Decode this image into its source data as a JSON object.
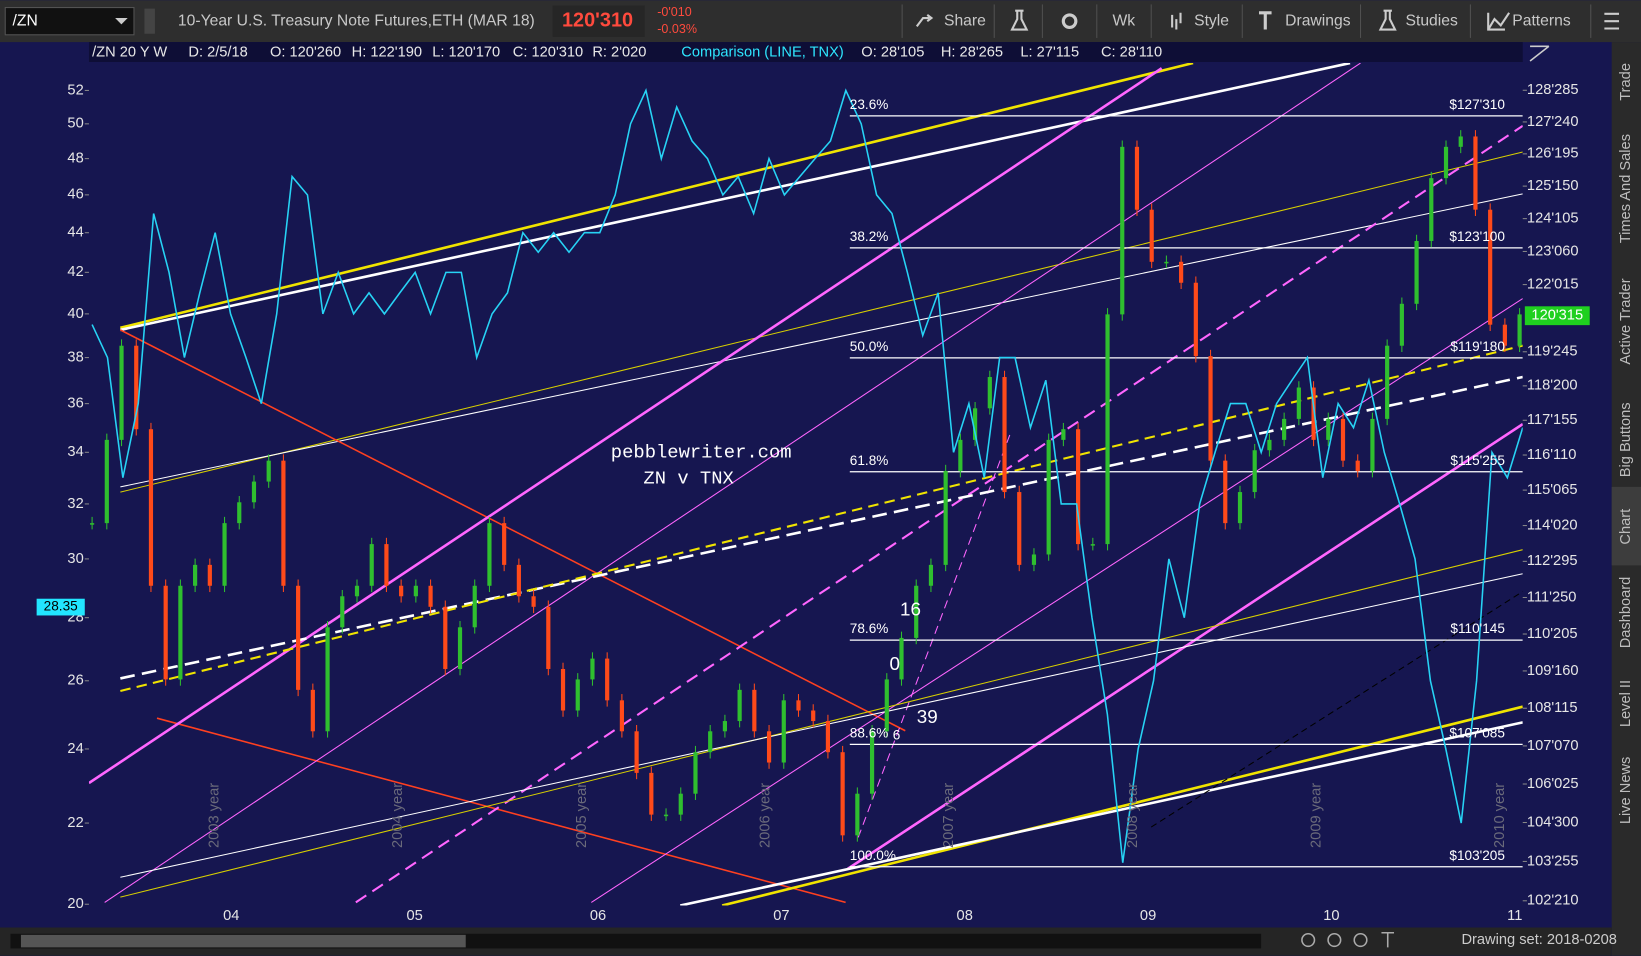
{
  "toolbar": {
    "symbol": "/ZN",
    "description": "10-Year U.S. Treasury Note Futures,ETH (MAR 18)",
    "last": "120'310",
    "change": "-0'010",
    "change_pct": "-0.03%",
    "buttons": [
      "Share",
      "Wk",
      "Style",
      "Drawings",
      "Studies",
      "Patterns"
    ]
  },
  "info_bar": {
    "symbol": "/ZN 20 Y W",
    "date": "D: 2/5/18",
    "open": "O: 120'260",
    "high": "H: 122'190",
    "low": "L: 120'170",
    "close": "C: 120'310",
    "range": "R: 2'020",
    "comparison": "Comparison (LINE, TNX)",
    "cmp_open": "O: 28'105",
    "cmp_high": "H: 28'265",
    "cmp_low": "L: 27'115",
    "cmp_close": "C: 28'110"
  },
  "chart": {
    "log_scale": true,
    "left_lim": [
      19.97,
      53.7
    ],
    "left_ticks": [
      52,
      50,
      48,
      46,
      44,
      42,
      40,
      38,
      36,
      34,
      32,
      30,
      28,
      26,
      24,
      22,
      20
    ],
    "current_tnx": 28.35,
    "right_lim": [
      102.52,
      129.88
    ],
    "right_ticks": [
      {
        "value": 128.890625,
        "label": "128'285"
      },
      {
        "value": 127.75,
        "label": "127'240"
      },
      {
        "value": 126.609375,
        "label": "126'195"
      },
      {
        "value": 125.46875,
        "label": "125'150"
      },
      {
        "value": 124.328125,
        "label": "124'105"
      },
      {
        "value": 123.1875,
        "label": "123'060"
      },
      {
        "value": 122.046875,
        "label": "122'015"
      },
      {
        "value": 119.765625,
        "label": "119'245"
      },
      {
        "value": 118.625,
        "label": "118'200"
      },
      {
        "value": 117.484375,
        "label": "117'155"
      },
      {
        "value": 116.34375,
        "label": "116'110"
      },
      {
        "value": 115.203125,
        "label": "115'065"
      },
      {
        "value": 114.0625,
        "label": "114'020"
      },
      {
        "value": 112.921875,
        "label": "112'295"
      },
      {
        "value": 111.78125,
        "label": "111'250"
      },
      {
        "value": 110.640625,
        "label": "110'205"
      },
      {
        "value": 109.5,
        "label": "109'160"
      },
      {
        "value": 108.359375,
        "label": "108'115"
      },
      {
        "value": 107.21875,
        "label": "107'070"
      },
      {
        "value": 106.078125,
        "label": "106'025"
      },
      {
        "value": 104.9375,
        "label": "104'300"
      },
      {
        "value": 103.796875,
        "label": "103'255"
      },
      {
        "value": 102.65625,
        "label": "102'210"
      }
    ],
    "current_price": {
      "value": 120.984375,
      "label": "120'315"
    },
    "x_labels": [
      "04",
      "05",
      "06",
      "07",
      "08",
      "09",
      "10",
      "11"
    ],
    "year_markers": [
      "2003 year",
      "2004 year",
      "2005 year",
      "2006 year",
      "2007 year",
      "2008 year",
      "2009 year",
      "2010 year"
    ],
    "fib_levels": [
      {
        "pct": "23.6%",
        "price": {
          "value": 127.96875,
          "label": "$127'310"
        }
      },
      {
        "pct": "38.2%",
        "price": {
          "value": 123.3125,
          "label": "$123'100"
        }
      },
      {
        "pct": "50.0%",
        "price": {
          "value": 119.5625,
          "label": "$119'180"
        }
      },
      {
        "pct": "61.8%",
        "price": {
          "value": 115.796875,
          "label": "$115'255"
        }
      },
      {
        "pct": "78.6%",
        "price": {
          "value": 110.453125,
          "label": "$110'145"
        }
      },
      {
        "pct": "88.6%",
        "price": {
          "value": 107.265625,
          "label": "$107'085"
        }
      },
      {
        "pct": "100.0%",
        "price": {
          "value": 103.640625,
          "label": "$103'205"
        }
      }
    ],
    "annotations": {
      "site": "pebblewriter.com",
      "subtitle": "ZN v TNX",
      "counts": [
        "16",
        "0",
        "39",
        "6"
      ]
    },
    "tnx_values": [
      39.5,
      38,
      33,
      36,
      45,
      42,
      38,
      41,
      44,
      40,
      38,
      36,
      40,
      47,
      46,
      40,
      42,
      40,
      41,
      40,
      41,
      42,
      40,
      42,
      42,
      38,
      40,
      41,
      44,
      43,
      44,
      43,
      44,
      44,
      46,
      50,
      52,
      48,
      51,
      49,
      48,
      46,
      47,
      45,
      48,
      46,
      47,
      48,
      49,
      52,
      50,
      46,
      45,
      42,
      39,
      41,
      34,
      36,
      33,
      38,
      38,
      35,
      37,
      32,
      32,
      28,
      25,
      21,
      24,
      26,
      30,
      28,
      32,
      34,
      36,
      36,
      34,
      36,
      37,
      38,
      33,
      36,
      35,
      37,
      34,
      32,
      30,
      26,
      24,
      22,
      26,
      34,
      33,
      35
    ],
    "zn_closes": [
      114.14,
      116.84,
      119.97,
      117.19,
      112.15,
      109.24,
      112.15,
      112.81,
      112.15,
      114.14,
      114.81,
      115.48,
      116.16,
      112.15,
      108.92,
      107.66,
      110.85,
      111.82,
      112.15,
      113.47,
      112.15,
      111.82,
      112.15,
      111.49,
      109.56,
      110.85,
      112.15,
      114.14,
      112.81,
      111.82,
      111.49,
      109.56,
      108.29,
      109.24,
      109.88,
      108.6,
      107.66,
      106.41,
      105.17,
      105.17,
      105.79,
      107.03,
      107.66,
      107.97,
      108.92,
      107.66,
      106.72,
      108.6,
      108.29,
      107.97,
      107.03,
      104.56,
      105.79,
      107.66,
      109.24,
      110.52,
      112.15,
      112.81,
      115.82,
      116.84,
      117.88,
      118.92,
      115.14,
      112.81,
      113.14,
      116.84,
      117.19,
      113.47,
      113.47,
      121.03,
      126.86,
      124.64,
      122.83,
      122.83,
      122.11,
      119.62,
      116.16,
      114.14,
      115.14,
      116.5,
      116.84,
      117.53,
      118.57,
      116.84,
      117.53,
      116.16,
      115.82,
      117.53,
      119.97,
      121.39,
      123.55,
      125.75,
      126.86,
      127.23,
      124.64,
      120.68,
      119.97,
      121.03
    ]
  },
  "side_tabs": [
    "Trade",
    "Times And Sales",
    "Active Trader",
    "Big Buttons",
    "Chart",
    "Dashboard",
    "Level II",
    "Live News"
  ],
  "status": {
    "drawing_set": "Drawing set: 2018-0208"
  }
}
